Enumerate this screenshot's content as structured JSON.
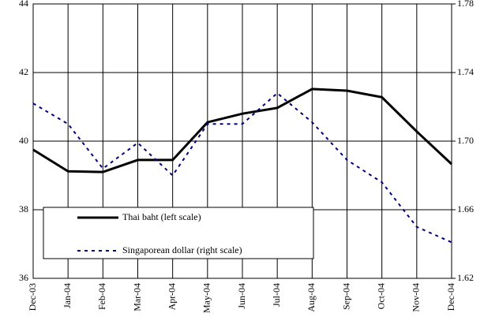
{
  "chart_data": {
    "type": "line",
    "categories": [
      "Dec-03",
      "Jan-04",
      "Feb-04",
      "Mar-04",
      "Apr-04",
      "May-04",
      "Jun-04",
      "Jul-04",
      "Aug-04",
      "Sep-04",
      "Oct-04",
      "Nov-04",
      "Dec-04"
    ],
    "series": [
      {
        "name": "Thai baht (left scale)",
        "color": "#000000",
        "style": "solid",
        "values": [
          39.75,
          39.12,
          39.1,
          39.45,
          39.45,
          40.55,
          40.8,
          40.97,
          41.52,
          41.47,
          41.28,
          40.28,
          39.33
        ]
      },
      {
        "name": "Singaporean dollar (right scale)",
        "color": "#000080",
        "style": "dashed",
        "axis": "y2",
        "values": [
          1.722,
          1.71,
          1.684,
          1.699,
          1.68,
          1.71,
          1.71,
          1.728,
          1.711,
          1.689,
          1.676,
          1.65,
          1.641
        ]
      }
    ],
    "ylim": [
      36,
      44
    ],
    "yticks": [
      36,
      38,
      40,
      42,
      44
    ],
    "y2lim": [
      1.62,
      1.78
    ],
    "y2ticks": [
      1.62,
      1.66,
      {
        "value": 1.7,
        "label": "1.70"
      },
      1.74,
      1.78
    ],
    "grid": true,
    "legend": "lower left"
  }
}
